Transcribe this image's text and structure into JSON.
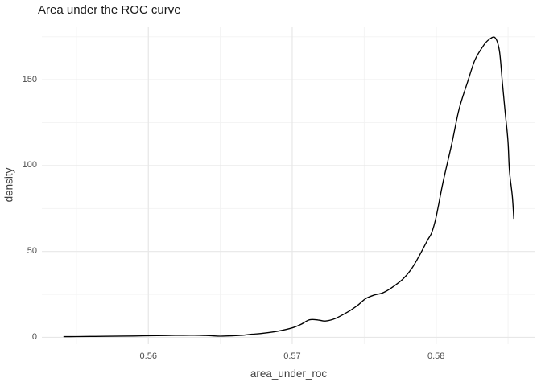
{
  "chart_data": {
    "type": "line",
    "subtype": "density-curve",
    "title": "Area under the ROC curve",
    "xlabel": "area_under_roc",
    "ylabel": "density",
    "xlim": [
      0.5526,
      0.5869
    ],
    "ylim": [
      -4,
      181
    ],
    "grid": true,
    "legend": "none",
    "line_color": "#000000",
    "major_grid_color": "#e7e7e7",
    "minor_grid_color": "#f2f2f2",
    "background_color": "#ffffff",
    "x_tick_values": [
      0.56,
      0.57,
      0.58
    ],
    "x_tick_labels": [
      "0.56",
      "0.57",
      "0.58"
    ],
    "y_tick_values": [
      0,
      50,
      100,
      150
    ],
    "y_tick_labels": [
      "0",
      "50",
      "100",
      "150"
    ],
    "x_minor_gridlines": [
      0.555,
      0.565,
      0.575,
      0.585
    ],
    "y_minor_gridlines": [
      25,
      75,
      125,
      175
    ],
    "series": [
      {
        "name": "density",
        "points": [
          [
            0.5541,
            0.4
          ],
          [
            0.555,
            0.45
          ],
          [
            0.5562,
            0.55
          ],
          [
            0.5575,
            0.65
          ],
          [
            0.559,
            0.8
          ],
          [
            0.56,
            0.9
          ],
          [
            0.5612,
            1.05
          ],
          [
            0.5622,
            1.2
          ],
          [
            0.5632,
            1.25
          ],
          [
            0.5642,
            1.0
          ],
          [
            0.565,
            0.7
          ],
          [
            0.5658,
            0.85
          ],
          [
            0.5665,
            1.2
          ],
          [
            0.5672,
            1.8
          ],
          [
            0.568,
            2.4
          ],
          [
            0.569,
            3.6
          ],
          [
            0.57,
            5.5
          ],
          [
            0.5706,
            7.5
          ],
          [
            0.5712,
            10.2
          ],
          [
            0.5718,
            10.1
          ],
          [
            0.5723,
            9.5
          ],
          [
            0.573,
            11.0
          ],
          [
            0.574,
            15.5
          ],
          [
            0.5746,
            19.0
          ],
          [
            0.5751,
            22.5
          ],
          [
            0.5757,
            24.6
          ],
          [
            0.5762,
            25.6
          ],
          [
            0.5766,
            27.2
          ],
          [
            0.5771,
            30.0
          ],
          [
            0.5777,
            34.0
          ],
          [
            0.5783,
            40.0
          ],
          [
            0.5788,
            47.0
          ],
          [
            0.5794,
            56.5
          ],
          [
            0.5797,
            61.0
          ],
          [
            0.58,
            70.0
          ],
          [
            0.5805,
            91.0
          ],
          [
            0.5811,
            113.0
          ],
          [
            0.5816,
            133.0
          ],
          [
            0.5822,
            149.0
          ],
          [
            0.5827,
            161.5
          ],
          [
            0.5833,
            170.0
          ],
          [
            0.5837,
            173.5
          ],
          [
            0.5841,
            174.5
          ],
          [
            0.5844,
            167.0
          ],
          [
            0.5846,
            149.0
          ],
          [
            0.5848,
            131.0
          ],
          [
            0.585,
            114.0
          ],
          [
            0.5851,
            97.0
          ],
          [
            0.5853,
            82.0
          ],
          [
            0.5854,
            69.0
          ]
        ]
      }
    ]
  }
}
